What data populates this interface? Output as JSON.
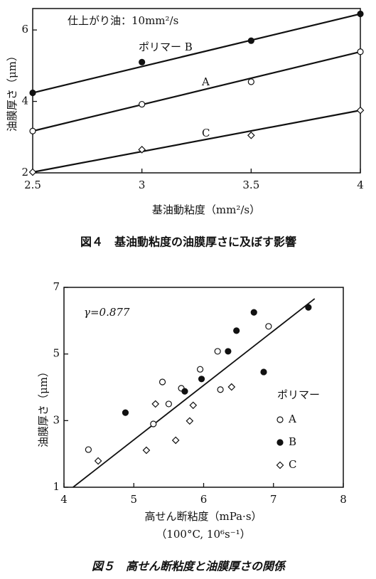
{
  "chart_data": [
    {
      "type": "line",
      "annotation": "仕上がり油：10mm²/s",
      "x_label": "基油動粘度（mm²/s）",
      "y_label": "油膜厚さ（μm）",
      "caption": "図４　基油動粘度の油膜厚さに及ぼす影響",
      "x": [
        2.5,
        3,
        3.5,
        4
      ],
      "xlim": [
        2.5,
        4
      ],
      "xticks": [
        2.5,
        3,
        3.5,
        4
      ],
      "ylim": [
        2,
        6.6
      ],
      "yticks": [
        2,
        4,
        6
      ],
      "series": [
        {
          "name": "ポリマー B",
          "marker": "filled-circle",
          "color": "#111111",
          "values": [
            4.24,
            5.1,
            5.7,
            6.45
          ],
          "trend": [
            4.24,
            6.45
          ]
        },
        {
          "name": "A",
          "marker": "open-circle",
          "color": "#111111",
          "values": [
            3.17,
            3.92,
            4.55,
            5.39
          ],
          "trend": [
            3.17,
            5.39
          ]
        },
        {
          "name": "C",
          "marker": "diamond",
          "color": "#111111",
          "values": [
            2.02,
            2.65,
            3.05,
            3.75
          ],
          "trend": [
            2.02,
            3.75
          ]
        }
      ]
    },
    {
      "type": "scatter",
      "annotation": "γ=0.877",
      "x_label": "高せん断粘度（mPa·s）",
      "x_sublabel": "（100°C, 10⁶s⁻¹）",
      "y_label": "油膜厚さ（μm）",
      "legend_title": "ポリマー",
      "caption": "図５　高せん断粘度と油膜厚さの関係",
      "xlim": [
        4,
        8
      ],
      "xticks": [
        4,
        5,
        6,
        7,
        8
      ],
      "ylim": [
        1,
        7
      ],
      "yticks": [
        1,
        3,
        5,
        7
      ],
      "trend": {
        "x": [
          4.13,
          7.59
        ],
        "y": [
          1,
          6.66
        ]
      },
      "series": [
        {
          "name": "A",
          "marker": "open-circle",
          "color": "#111111",
          "x": [
            4.35,
            5.41,
            5.5,
            5.68,
            5.95,
            6.24,
            6.2,
            6.93,
            5.28
          ],
          "y": [
            2.13,
            4.16,
            3.5,
            3.97,
            4.54,
            3.93,
            5.08,
            5.83,
            2.9
          ]
        },
        {
          "name": "B",
          "marker": "filled-circle",
          "color": "#111111",
          "x": [
            4.88,
            5.73,
            5.97,
            6.35,
            6.47,
            6.72,
            6.86,
            7.5
          ],
          "y": [
            3.24,
            3.88,
            4.25,
            5.08,
            5.7,
            6.25,
            4.46,
            6.4
          ]
        },
        {
          "name": "C",
          "marker": "diamond",
          "color": "#111111",
          "x": [
            4.49,
            5.31,
            5.18,
            5.6,
            5.8,
            5.85,
            6.4
          ],
          "y": [
            1.79,
            3.5,
            2.11,
            2.41,
            2.99,
            3.46,
            4.01
          ]
        }
      ]
    }
  ]
}
